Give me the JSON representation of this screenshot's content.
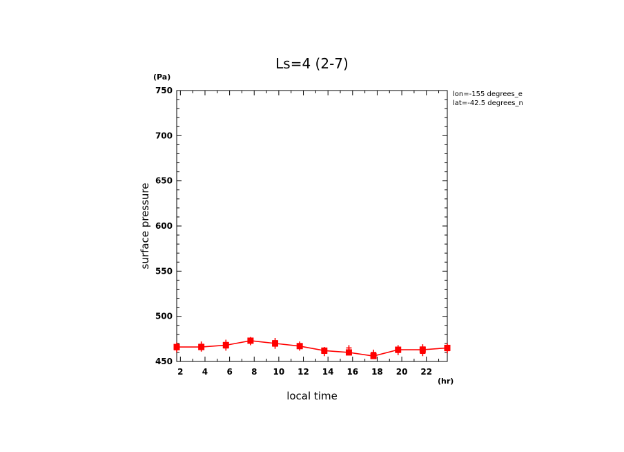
{
  "chart_data": {
    "type": "line",
    "title": "Ls=4 (2-7)",
    "xlabel": "local time",
    "ylabel": "surface pressure",
    "x_unit": "(hr)",
    "y_unit": "(Pa)",
    "xlim": [
      1.7,
      23.7
    ],
    "ylim": [
      450,
      750
    ],
    "xticks": [
      2,
      4,
      6,
      8,
      10,
      12,
      14,
      16,
      18,
      20,
      22
    ],
    "yticks": [
      450,
      500,
      550,
      600,
      650,
      700,
      750
    ],
    "annotations": [
      "lon=-155 degrees_e",
      "lat=-42.5 degrees_n"
    ],
    "grid": false,
    "color": "#ff0000",
    "series": [
      {
        "style": "line-square",
        "x": [
          1.7,
          3.7,
          5.7,
          7.7,
          9.7,
          11.7,
          13.7,
          15.7,
          17.7,
          19.7,
          21.7,
          23.7
        ],
        "values": [
          466,
          466,
          468,
          473,
          470,
          467,
          462,
          460,
          456,
          463,
          463,
          465
        ]
      },
      {
        "style": "plus",
        "x": [
          1.7,
          3.7,
          5.7,
          7.7,
          9.7,
          11.7,
          13.7,
          15.7,
          17.7,
          19.7,
          21.7,
          23.7
        ],
        "values": [
          463,
          464,
          465,
          471,
          467,
          465,
          459,
          465,
          460,
          460,
          459,
          462
        ]
      },
      {
        "style": "plus",
        "x": [
          1.7,
          3.7,
          5.7,
          7.7,
          9.7,
          11.7,
          13.7,
          15.7,
          17.7,
          19.7,
          21.7,
          23.7
        ],
        "values": [
          468,
          469,
          471,
          474,
          473,
          469,
          463,
          461,
          457,
          465,
          466,
          467
        ]
      }
    ]
  }
}
